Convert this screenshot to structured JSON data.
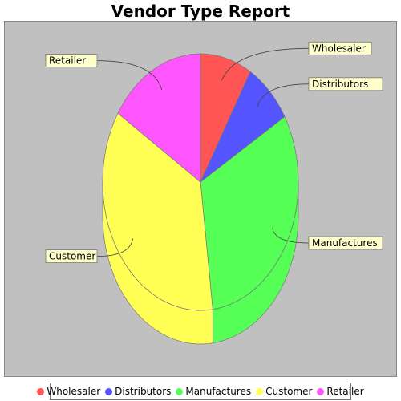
{
  "chart_data": {
    "type": "pie",
    "style": "3d",
    "title": "Vendor Type Report",
    "categories": [
      "Wholesaler",
      "Distributors",
      "Manufactures",
      "Customer",
      "Retailer"
    ],
    "values": [
      8.5,
      8,
      31.5,
      36,
      16
    ],
    "colors": [
      "#ff5555",
      "#5555ff",
      "#55ff55",
      "#ffff55",
      "#ff55ff"
    ],
    "legend_position": "bottom"
  },
  "colors": {
    "plot_background": "#c0c0c0",
    "label_background": "#ffffcc"
  }
}
